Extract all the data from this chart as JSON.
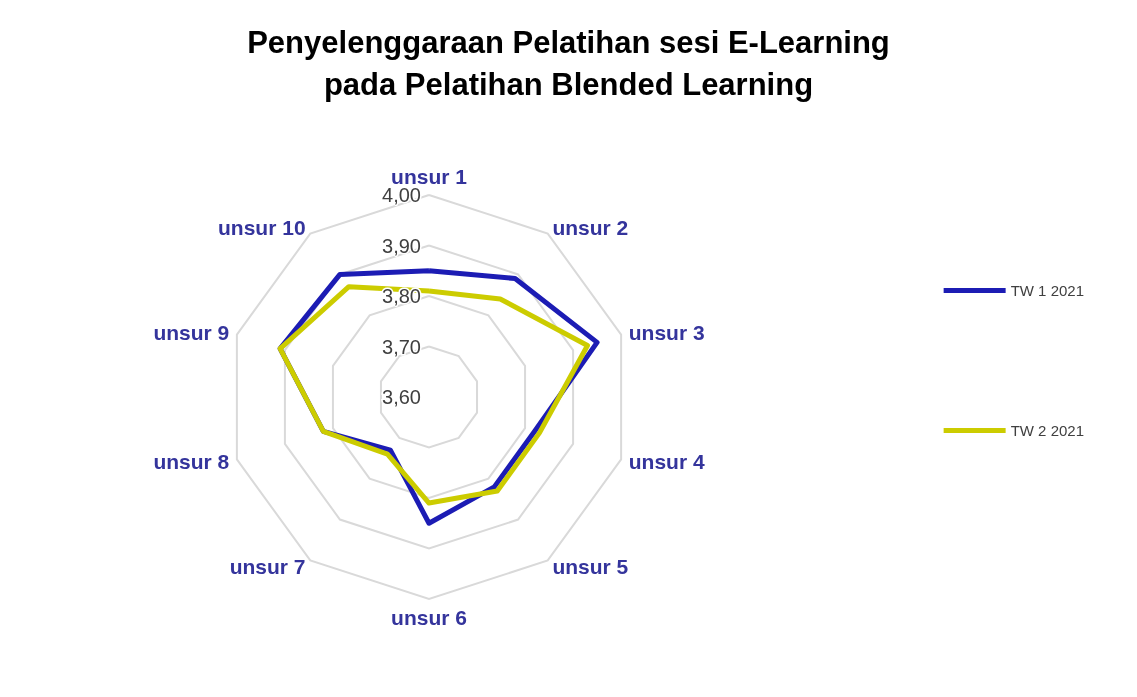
{
  "chart_data": {
    "type": "radar",
    "title": "Penyelenggaraan Pelatihan sesi E-Learning\npada Pelatihan Blended Learning",
    "categories": [
      "unsur 1",
      "unsur 2",
      "unsur 3",
      "unsur 4",
      "unsur 5",
      "unsur 6",
      "unsur 7",
      "unsur 8",
      "unsur 9",
      "unsur 10"
    ],
    "series": [
      {
        "name": "TW 1 2021",
        "color": "#1c1cb4",
        "values": [
          3.85,
          3.89,
          3.95,
          3.82,
          3.82,
          3.85,
          3.73,
          3.82,
          3.91,
          3.9
        ]
      },
      {
        "name": "TW 2 2021",
        "color": "#cccc00",
        "values": [
          3.81,
          3.84,
          3.93,
          3.83,
          3.83,
          3.81,
          3.74,
          3.82,
          3.91,
          3.87
        ]
      }
    ],
    "ylim": [
      3.6,
      4.0
    ],
    "yticks": [
      {
        "value": 3.6,
        "label": "3,60"
      },
      {
        "value": 3.7,
        "label": "3,70"
      },
      {
        "value": 3.8,
        "label": "3,80"
      },
      {
        "value": 3.9,
        "label": "3,90"
      },
      {
        "value": 4.0,
        "label": "4,00"
      }
    ],
    "grid": true,
    "legend": "right"
  }
}
